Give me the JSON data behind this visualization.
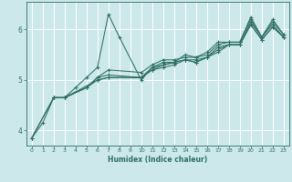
{
  "xlabel": "Humidex (Indice chaleur)",
  "xlim": [
    -0.5,
    23.5
  ],
  "ylim": [
    3.7,
    6.55
  ],
  "xticks": [
    0,
    1,
    2,
    3,
    4,
    5,
    6,
    7,
    8,
    9,
    10,
    11,
    12,
    13,
    14,
    15,
    16,
    17,
    18,
    19,
    20,
    21,
    22,
    23
  ],
  "yticks": [
    4,
    5,
    6
  ],
  "background_color": "#cce8ea",
  "line_color": "#2d6e63",
  "grid_color": "#ffffff",
  "lines": [
    {
      "x": [
        0,
        1,
        2,
        3,
        4,
        5,
        6,
        7,
        8,
        10,
        11,
        12,
        13,
        14,
        15,
        16,
        17,
        18,
        19,
        20,
        21,
        22,
        23
      ],
      "y": [
        3.85,
        4.15,
        4.65,
        4.65,
        4.85,
        5.05,
        5.25,
        6.3,
        5.85,
        5.0,
        5.25,
        5.35,
        5.35,
        5.5,
        5.45,
        5.55,
        5.75,
        5.75,
        5.75,
        6.25,
        5.85,
        6.2,
        5.9
      ]
    },
    {
      "x": [
        0,
        2,
        3,
        5,
        6,
        7,
        10,
        11,
        12,
        13,
        14,
        15,
        16,
        17,
        18,
        19,
        20,
        21,
        22,
        23
      ],
      "y": [
        3.85,
        4.65,
        4.65,
        4.85,
        5.05,
        5.2,
        5.15,
        5.3,
        5.4,
        5.4,
        5.45,
        5.45,
        5.5,
        5.7,
        5.75,
        5.75,
        6.2,
        5.85,
        6.15,
        5.9
      ]
    },
    {
      "x": [
        0,
        2,
        3,
        5,
        6,
        7,
        10,
        11,
        12,
        13,
        14,
        15,
        16,
        17,
        18,
        19,
        20,
        21,
        22,
        23
      ],
      "y": [
        3.85,
        4.65,
        4.65,
        4.85,
        5.05,
        5.1,
        5.05,
        5.25,
        5.3,
        5.35,
        5.4,
        5.4,
        5.45,
        5.65,
        5.7,
        5.7,
        6.15,
        5.85,
        6.1,
        5.85
      ]
    },
    {
      "x": [
        2,
        3,
        5,
        6,
        7,
        10,
        11,
        12,
        13,
        14,
        15,
        16,
        17,
        18,
        19,
        20,
        21,
        22,
        23
      ],
      "y": [
        4.65,
        4.65,
        4.85,
        5.0,
        5.05,
        5.05,
        5.2,
        5.3,
        5.35,
        5.4,
        5.35,
        5.45,
        5.6,
        5.7,
        5.7,
        6.1,
        5.8,
        6.05,
        5.85
      ]
    },
    {
      "x": [
        2,
        3,
        6,
        7,
        10,
        11,
        12,
        13,
        14,
        15,
        16,
        17,
        18,
        19,
        20,
        21,
        22,
        23
      ],
      "y": [
        4.65,
        4.65,
        5.0,
        5.05,
        5.05,
        5.2,
        5.25,
        5.3,
        5.4,
        5.35,
        5.45,
        5.55,
        5.7,
        5.7,
        6.1,
        5.8,
        6.05,
        5.85
      ]
    }
  ]
}
